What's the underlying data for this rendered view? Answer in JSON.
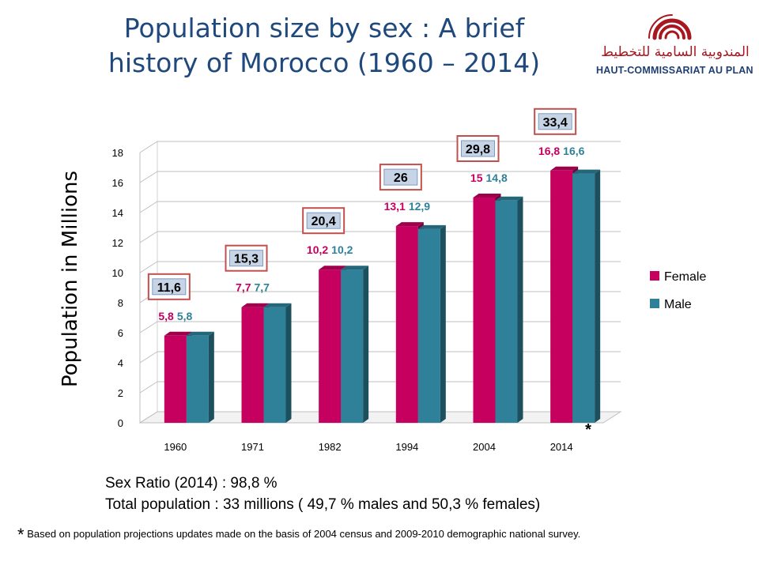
{
  "page": {
    "title_line1": "Population size by sex : A brief",
    "title_line2": "history of Morocco (1960 – 2014)",
    "logo_arabic": "المندوبية السامية للتخطيط",
    "logo_name": "HAUT-COMMISSARIAT AU PLAN",
    "sex_ratio": "Sex Ratio (2014)  : 98,8 %",
    "total_population": "Total population  : 33 millions  ( 49,7 % males and 50,3 % females)",
    "footnote_star": "*",
    "footnote_text": "Based on population  projections  updates  made  on  the basis of 2004 census  and  2009-2010  demographic  national  survey."
  },
  "chart_data": {
    "type": "bar",
    "ylabel": "Population in Millions",
    "categories": [
      "1960",
      "1971",
      "1982",
      "1994",
      "2004",
      "2014"
    ],
    "ylim": [
      0,
      18
    ],
    "yticks": [
      0,
      2,
      4,
      6,
      8,
      10,
      12,
      14,
      16,
      18
    ],
    "grid": true,
    "legend_position": "right",
    "series": [
      {
        "name": "Female",
        "color": "#c5005f",
        "values": [
          5.8,
          7.7,
          10.2,
          13.1,
          15,
          16.8
        ],
        "labels": [
          "5,8",
          "7,7",
          "10,2",
          "13,1",
          "15",
          "16,8"
        ]
      },
      {
        "name": "Male",
        "color": "#2e8198",
        "values": [
          5.8,
          7.7,
          10.2,
          12.9,
          14.8,
          16.6
        ],
        "labels": [
          "5,8",
          "7,7",
          "10,2",
          "12,9",
          "14,8",
          "16,6"
        ]
      }
    ],
    "totals": [
      "11,6",
      "15,3",
      "20,4",
      "26",
      "29,8",
      "33,4"
    ],
    "annotation": "*"
  }
}
